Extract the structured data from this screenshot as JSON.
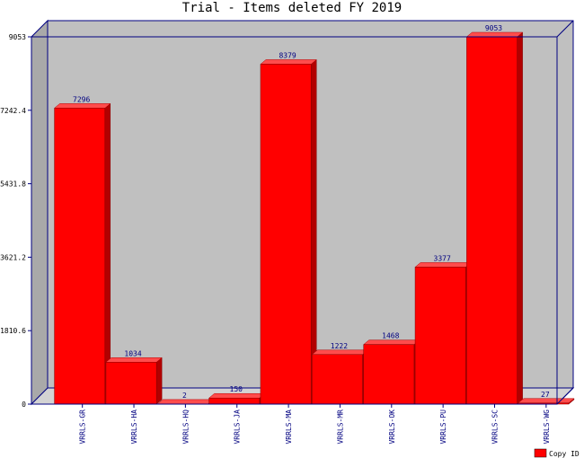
{
  "chart_data": {
    "type": "bar",
    "title": "Trial - Items deleted FY 2019",
    "categories": [
      "VRRLS-GR",
      "VRRLS-HA",
      "VRRLS-HQ",
      "VRRLS-JA",
      "VRRLS-MA",
      "VRRLS-MR",
      "VRRLS-OK",
      "VRRLS-PU",
      "VRRLS-SC",
      "VRRLS-WG"
    ],
    "series": [
      {
        "name": "Copy ID",
        "values": [
          7296,
          1034,
          2,
          150,
          8379,
          1222,
          1468,
          3377,
          9053,
          27
        ]
      }
    ],
    "y_ticks": [
      "0",
      "1810.6",
      "3621.2",
      "5431.8",
      "7242.4",
      "9053"
    ],
    "ylim": [
      0,
      9053
    ],
    "legend_position": "bottom-right",
    "grid": false,
    "style": "3d",
    "colors": {
      "bar_front": "#ff0000",
      "bar_top": "#ff4c4c",
      "bar_side": "#b20000",
      "back_wall": "#c0c0c0",
      "side_wall": "#a9a9a9",
      "floor": "#d3d3d3",
      "axis": "#000080",
      "label": "#000080"
    }
  }
}
